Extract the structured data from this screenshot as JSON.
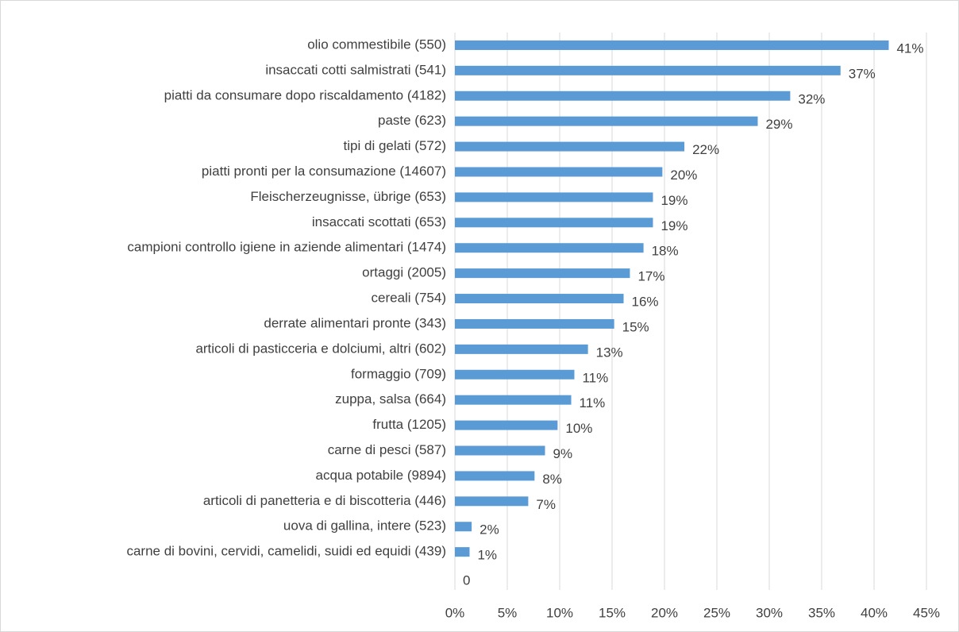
{
  "chart_data": {
    "type": "hbar",
    "categories": [
      "olio commestibile (550)",
      "insaccati cotti salmistrati (541)",
      "piatti da consumare dopo riscaldamento (4182)",
      "paste (623)",
      "tipi di gelati (572)",
      "piatti pronti per la consumazione (14607)",
      "Fleischerzeugnisse, übrige (653)",
      "insaccati scottati (653)",
      "campioni controllo igiene in aziende alimentari (1474)",
      "ortaggi (2005)",
      "cereali (754)",
      "derrate alimentari pronte (343)",
      "articoli di pasticceria e dolciumi, altri (602)",
      "formaggio (709)",
      "zuppa, salsa (664)",
      "frutta (1205)",
      "carne di pesci (587)",
      "acqua potabile (9894)",
      "articoli di panetteria e di biscotteria (446)",
      "uova di gallina, intere (523)",
      "carne di bovini, cervidi, camelidi, suidi ed equidi (439)",
      null
    ],
    "values": [
      41.4,
      36.8,
      32.0,
      28.9,
      21.9,
      19.8,
      18.9,
      18.9,
      18.0,
      16.7,
      16.1,
      15.2,
      12.7,
      11.4,
      11.1,
      9.8,
      8.6,
      7.6,
      7.0,
      1.6,
      1.4,
      0
    ],
    "value_labels": [
      "41%",
      "37%",
      "32%",
      "29%",
      "22%",
      "20%",
      "19%",
      "19%",
      "18%",
      "17%",
      "16%",
      "15%",
      "13%",
      "11%",
      "11%",
      "10%",
      "9%",
      "8%",
      "7%",
      "2%",
      "1%",
      "0"
    ],
    "color": "#5b9bd5",
    "xlim": [
      0,
      45
    ],
    "xticks": [
      {
        "value": 0,
        "label": "0%"
      },
      {
        "value": 5,
        "label": "5%"
      },
      {
        "value": 10,
        "label": "10%"
      },
      {
        "value": 15,
        "label": "15%"
      },
      {
        "value": 20,
        "label": "20%"
      },
      {
        "value": 25,
        "label": "25%"
      },
      {
        "value": 30,
        "label": "30%"
      },
      {
        "value": 35,
        "label": "35%"
      },
      {
        "value": 40,
        "label": "40%"
      },
      {
        "value": 45,
        "label": "45%"
      }
    ],
    "grid": true
  }
}
